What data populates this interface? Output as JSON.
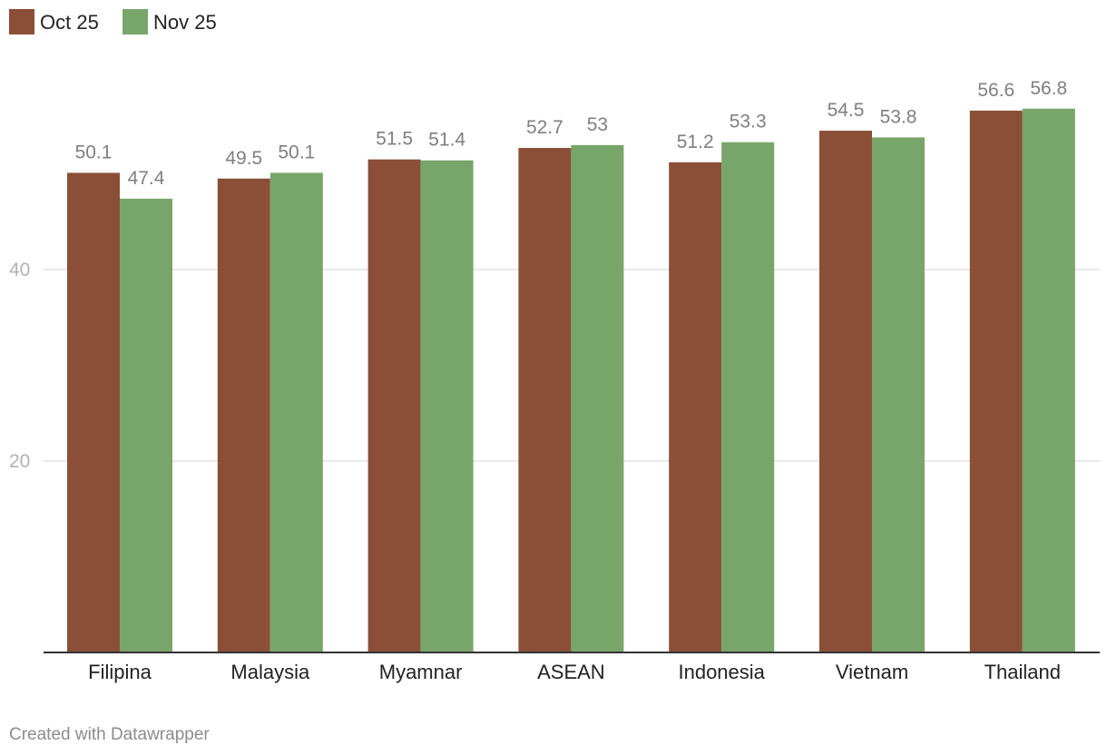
{
  "chart_data": {
    "type": "bar",
    "categories": [
      "Filipina",
      "Malaysia",
      "Myamnar",
      "ASEAN",
      "Indonesia",
      "Vietnam",
      "Thailand"
    ],
    "series": [
      {
        "name": "Oct 25",
        "color": "#8b4f38",
        "values": [
          50.1,
          49.5,
          51.5,
          52.7,
          51.2,
          54.5,
          56.6
        ],
        "labels": [
          "50.1",
          "49.5",
          "51.5",
          "52.7",
          "51.2",
          "54.5",
          "56.6"
        ]
      },
      {
        "name": "Nov 25",
        "color": "#78a66a",
        "values": [
          47.4,
          50.1,
          51.4,
          53,
          53.3,
          53.8,
          56.8
        ],
        "labels": [
          "47.4",
          "50.1",
          "51.4",
          "53",
          "53.3",
          "53.8",
          "56.8"
        ]
      }
    ],
    "yticks": [
      20,
      40
    ],
    "ylim": [
      0,
      58.5
    ],
    "grid": true,
    "legend_position": "top-left",
    "title": "",
    "xlabel": "",
    "ylabel": ""
  },
  "footer": {
    "credit": "Created with Datawrapper"
  }
}
